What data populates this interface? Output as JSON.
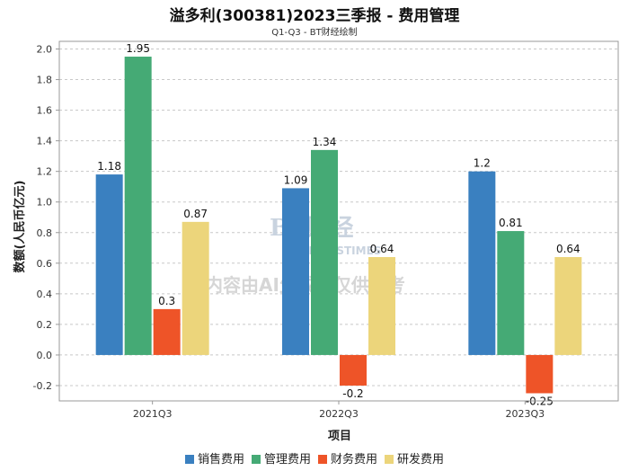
{
  "chart_data": {
    "type": "bar",
    "title": "溢多利(300381)2023三季报 - 费用管理",
    "subtitle": "Q1-Q3 - BT财经绘制",
    "xlabel": "项目",
    "ylabel": "数额(人民币亿元)",
    "ylim": [
      -0.3,
      2.05
    ],
    "yticks": [
      -0.2,
      0.0,
      0.2,
      0.4,
      0.6,
      0.8,
      1.0,
      1.2,
      1.4,
      1.6,
      1.8,
      2.0
    ],
    "grid": true,
    "legend_position": "bottom",
    "categories": [
      "2021Q3",
      "2022Q3",
      "2023Q3"
    ],
    "series": [
      {
        "name": "销售费用",
        "color": "#3a80c0",
        "values": [
          1.18,
          1.09,
          1.2
        ]
      },
      {
        "name": "管理费用",
        "color": "#45aa75",
        "values": [
          1.95,
          1.34,
          0.81
        ]
      },
      {
        "name": "财务费用",
        "color": "#ee5428",
        "values": [
          0.3,
          -0.2,
          -0.25
        ]
      },
      {
        "name": "研发费用",
        "color": "#ecd57b",
        "values": [
          0.87,
          0.64,
          0.64
        ]
      }
    ]
  },
  "watermark": {
    "logo_text": "BT财经",
    "logo_sub": "BUSINESSTIMES",
    "notice": "内容由AI生成，仅供参考"
  }
}
